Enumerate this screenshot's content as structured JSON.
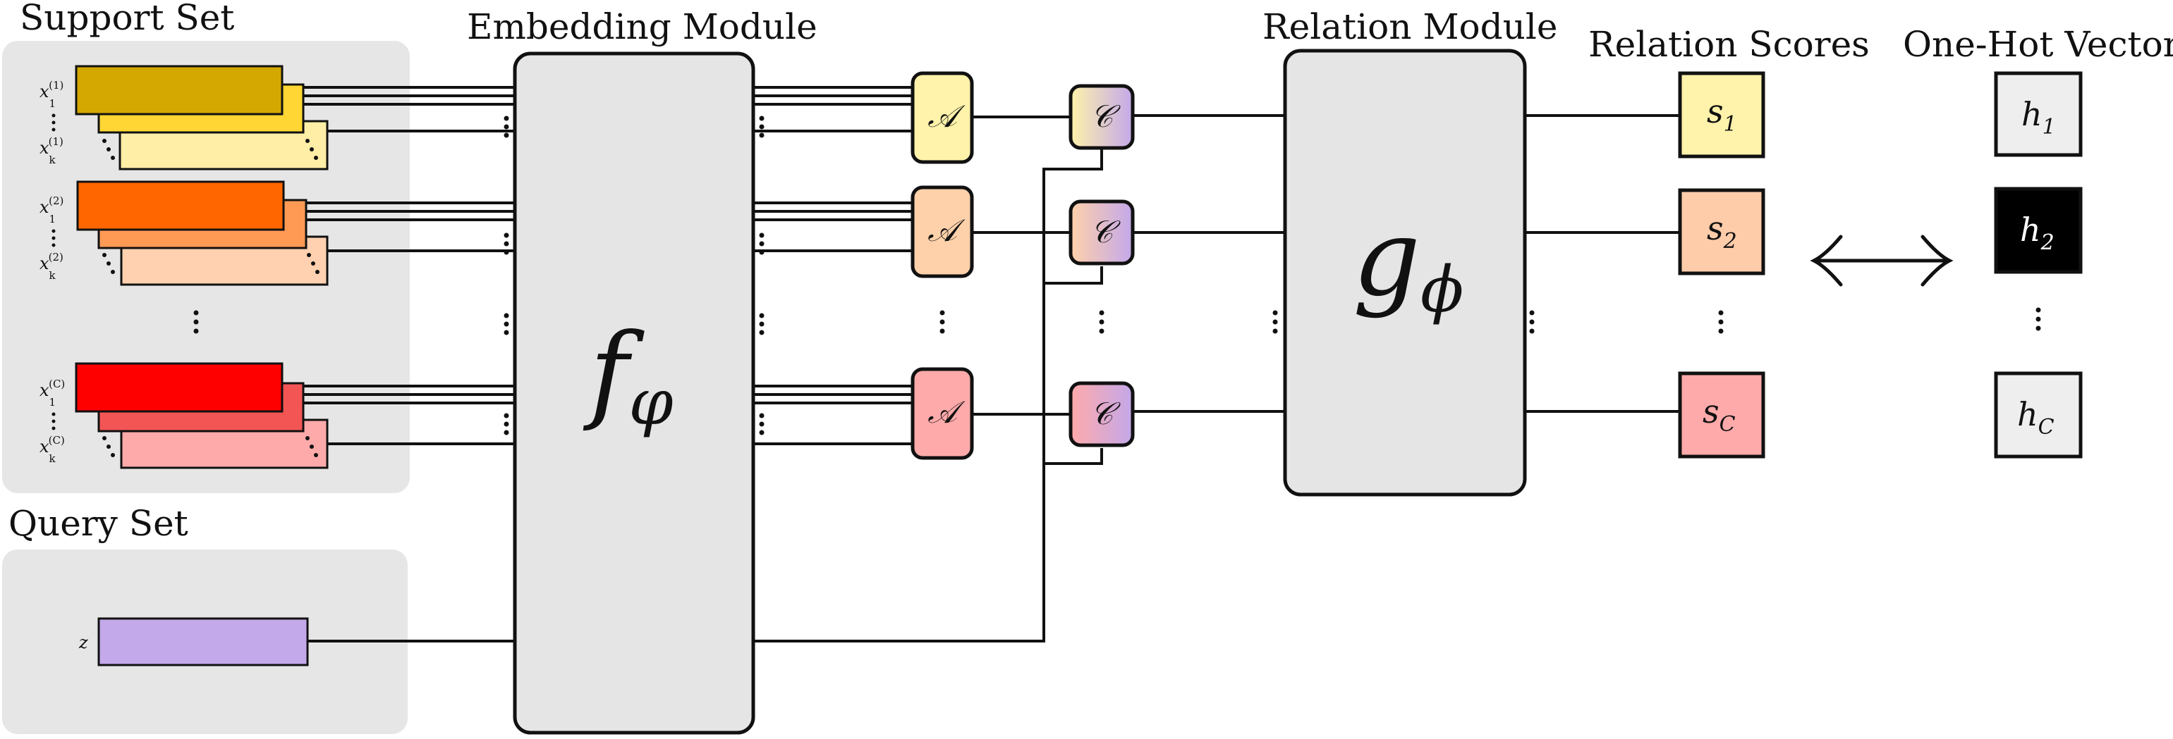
{
  "titles": {
    "support_set": "Support Set",
    "query_set": "Query Set",
    "embedding_module": "Embedding Module",
    "relation_module": "Relation Module",
    "relation_scores": "Relation Scores",
    "one_hot_vector": "One-Hot Vector"
  },
  "support_groups": [
    {
      "colors": [
        "#d4a800",
        "#ffd633",
        "#ffeea6"
      ],
      "sample_first": "x",
      "sup_first": "(1)",
      "sub_first": "1",
      "sample_last": "x",
      "sup_last": "(1)",
      "sub_last": "k"
    },
    {
      "colors": [
        "#ff6600",
        "#ff9a55",
        "#ffd1b0"
      ],
      "sample_first": "x",
      "sup_first": "(2)",
      "sub_first": "1",
      "sample_last": "x",
      "sup_last": "(2)",
      "sub_last": "k"
    },
    {
      "colors": [
        "#ff0000",
        "#f35555",
        "#ffaaaa"
      ],
      "sample_first": "x",
      "sup_first": "(C)",
      "sub_first": "1",
      "sample_last": "x",
      "sup_last": "(C)",
      "sub_last": "k"
    }
  ],
  "query": {
    "label": "z",
    "color": "#c3a8ea"
  },
  "embedding": {
    "symbol": "f",
    "subscript": "φ",
    "color": "#e5e5e5"
  },
  "relation": {
    "symbol": "g",
    "subscript": "ϕ",
    "color": "#e5e5e5"
  },
  "aggregator": {
    "symbol": "𝒜",
    "colors": [
      "#fff2aa",
      "#ffd1aa",
      "#ffaaaa"
    ]
  },
  "combiner": {
    "symbol": "𝒞"
  },
  "scores": [
    {
      "symbol": "s",
      "subscript": "1",
      "color": "#fff2aa"
    },
    {
      "symbol": "s",
      "subscript": "2",
      "color": "#ffccaa"
    },
    {
      "symbol": "s",
      "subscript": "C",
      "color": "#ffaaaa"
    }
  ],
  "one_hot": [
    {
      "symbol": "h",
      "subscript": "1",
      "active": false
    },
    {
      "symbol": "h",
      "subscript": "2",
      "active": true
    },
    {
      "symbol": "h",
      "subscript": "C",
      "active": false
    }
  ],
  "colors": {
    "panel": "#e6e6e6",
    "stroke": "#111111",
    "one_hot_off": "#eeeeee",
    "one_hot_on": "#000000"
  }
}
